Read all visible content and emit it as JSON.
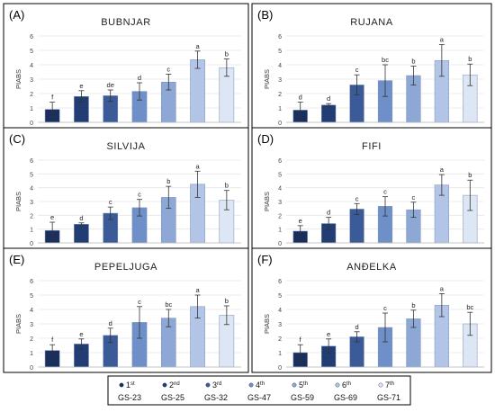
{
  "figure": {
    "categories": [
      "GS-23",
      "GS-25",
      "GS-32",
      "GS-47",
      "GS-59",
      "GS-69",
      "GS-71"
    ],
    "legend": [
      {
        "marker": "1st",
        "num": "1",
        "sup": "st",
        "stage": "GS-23",
        "color": "#1a2f5e"
      },
      {
        "marker": "2nd",
        "num": "2",
        "sup": "nd",
        "stage": "GS-25",
        "color": "#223d74"
      },
      {
        "marker": "3rd",
        "num": "3",
        "sup": "rd",
        "stage": "GS-32",
        "color": "#3a5a98"
      },
      {
        "marker": "4th",
        "num": "4",
        "sup": "th",
        "stage": "GS-47",
        "color": "#6f8fc8"
      },
      {
        "marker": "5th",
        "num": "5",
        "sup": "th",
        "stage": "GS-59",
        "color": "#8ea8d6"
      },
      {
        "marker": "6th",
        "num": "6",
        "sup": "th",
        "stage": "GS-69",
        "color": "#b3c5e6"
      },
      {
        "marker": "7th",
        "num": "7",
        "sup": "th",
        "stage": "GS-71",
        "color": "#dde6f4"
      }
    ]
  },
  "chart_data": [
    {
      "type": "bar",
      "panel_label": "(A)",
      "title": "BUBNJAR",
      "ylabel": "PIABS",
      "ylim": [
        0,
        6
      ],
      "yticks": [
        0,
        1,
        2,
        3,
        4,
        5,
        6
      ],
      "categories": [
        "GS-23",
        "GS-25",
        "GS-32",
        "GS-47",
        "GS-59",
        "GS-69",
        "GS-71"
      ],
      "values": [
        0.9,
        1.8,
        1.85,
        2.15,
        2.8,
        4.35,
        3.8
      ],
      "errors": [
        0.5,
        0.4,
        0.4,
        0.6,
        0.55,
        0.6,
        0.6
      ],
      "letters": [
        "f",
        "e",
        "de",
        "d",
        "c",
        "a",
        "b"
      ]
    },
    {
      "type": "bar",
      "panel_label": "(B)",
      "title": "RUJANA",
      "ylabel": "PIABS",
      "ylim": [
        0,
        6
      ],
      "yticks": [
        0,
        1,
        2,
        3,
        4,
        5,
        6
      ],
      "categories": [
        "GS-23",
        "GS-25",
        "GS-32",
        "GS-47",
        "GS-59",
        "GS-69",
        "GS-71"
      ],
      "values": [
        0.85,
        1.2,
        2.6,
        2.9,
        3.25,
        4.3,
        3.3
      ],
      "errors": [
        0.55,
        0.1,
        0.7,
        1.1,
        0.65,
        1.1,
        0.75
      ],
      "letters": [
        "d",
        "d",
        "c",
        "bc",
        "b",
        "a",
        "b"
      ]
    },
    {
      "type": "bar",
      "panel_label": "(C)",
      "title": "SILVIJA",
      "ylabel": "PIABS",
      "ylim": [
        0,
        6
      ],
      "yticks": [
        0,
        1,
        2,
        3,
        4,
        5,
        6
      ],
      "categories": [
        "GS-23",
        "GS-25",
        "GS-32",
        "GS-47",
        "GS-59",
        "GS-69",
        "GS-71"
      ],
      "values": [
        0.9,
        1.35,
        2.15,
        2.55,
        3.3,
        4.25,
        3.1
      ],
      "errors": [
        0.6,
        0.1,
        0.45,
        0.6,
        0.8,
        0.95,
        0.7
      ],
      "letters": [
        "e",
        "d",
        "c",
        "c",
        "b",
        "a",
        "b"
      ]
    },
    {
      "type": "bar",
      "panel_label": "(D)",
      "title": "FIFI",
      "ylabel": "PIABS",
      "ylim": [
        0,
        6
      ],
      "yticks": [
        0,
        1,
        2,
        3,
        4,
        5,
        6
      ],
      "categories": [
        "GS-23",
        "GS-25",
        "GS-32",
        "GS-47",
        "GS-59",
        "GS-69",
        "GS-71"
      ],
      "values": [
        0.85,
        1.4,
        2.45,
        2.65,
        2.4,
        4.2,
        3.45
      ],
      "errors": [
        0.4,
        0.45,
        0.4,
        0.7,
        0.55,
        0.75,
        1.1
      ],
      "letters": [
        "e",
        "d",
        "c",
        "c",
        "c",
        "a",
        "b"
      ]
    },
    {
      "type": "bar",
      "panel_label": "(E)",
      "title": "PEPELJUGA",
      "ylabel": "PIABS",
      "ylim": [
        0,
        6
      ],
      "yticks": [
        0,
        1,
        2,
        3,
        4,
        5,
        6
      ],
      "categories": [
        "GS-23",
        "GS-25",
        "GS-32",
        "GS-47",
        "GS-59",
        "GS-69",
        "GS-71"
      ],
      "values": [
        1.15,
        1.6,
        2.2,
        3.1,
        3.4,
        4.2,
        3.6
      ],
      "errors": [
        0.4,
        0.35,
        0.5,
        1.1,
        0.6,
        0.8,
        0.65
      ],
      "letters": [
        "f",
        "e",
        "d",
        "c",
        "bc",
        "a",
        "b"
      ]
    },
    {
      "type": "bar",
      "panel_label": "(F)",
      "title": "ANĐELKA",
      "ylabel": "PIABS",
      "ylim": [
        0,
        6
      ],
      "yticks": [
        0,
        1,
        2,
        3,
        4,
        5,
        6
      ],
      "categories": [
        "GS-23",
        "GS-25",
        "GS-32",
        "GS-47",
        "GS-59",
        "GS-69",
        "GS-71"
      ],
      "values": [
        1.0,
        1.45,
        2.1,
        2.75,
        3.35,
        4.3,
        3.0
      ],
      "errors": [
        0.55,
        0.5,
        0.35,
        1.0,
        0.6,
        0.8,
        0.8
      ],
      "letters": [
        "f",
        "e",
        "d",
        "c",
        "b",
        "a",
        "bc"
      ]
    }
  ]
}
